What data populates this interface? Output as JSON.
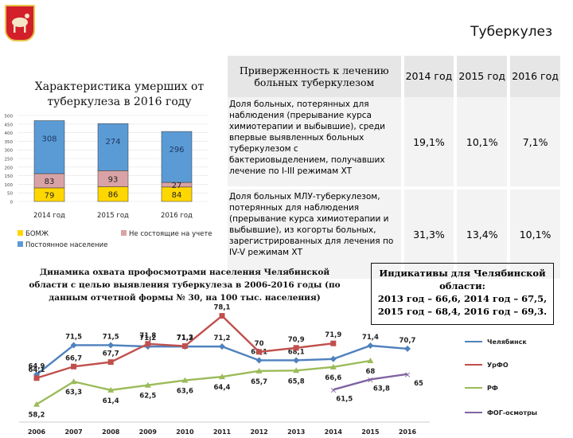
{
  "page_title": "Туберкулез",
  "colors": {
    "bomzh": "#ffd700",
    "not_registered": "#d9a3a5",
    "permanent": "#5b9bd5",
    "chelyabinsk": "#4f81bd",
    "urfo": "#c0504d",
    "rf": "#9bbb59",
    "fog": "#8064a2"
  },
  "table": {
    "header": "Приверженность к лечению больных туберкулезом",
    "years": [
      "2014 год",
      "2015 год",
      "2016 год"
    ],
    "rows": [
      {
        "text": "Доля больных, потерянных для наблюдения (прерывание курса химиотерапии и выбывшие), среди впервые выявленных больных туберкулезом с бактериовыделением, получавших лечение по I-III режимам ХТ",
        "values": [
          "19,1%",
          "10,1%",
          "7,1%"
        ]
      },
      {
        "text": "Доля больных МЛУ-туберкулезом, потерянных для наблюдения (прерывание курса химиотерапии и выбывшие), из когорты больных, зарегистрированных для лечения по IV-V режимам ХТ",
        "values": [
          "31,3%",
          "13,4%",
          "10,1%"
        ]
      }
    ]
  },
  "indicators": {
    "lines": [
      "Индикативы для Челябинской",
      "области:",
      "2013 год – 66,6, 2014 год – 67,5,",
      "2015 год – 68,4, 2016 год – 69,3."
    ]
  },
  "chart_data": [
    {
      "type": "bar",
      "stacked": true,
      "title": "Характеристика умерших от туберкулеза в 2016 году",
      "categories": [
        "2014 год",
        "2015 год",
        "2016 год"
      ],
      "ylim": [
        0,
        500
      ],
      "yticks": [
        "0",
        "50",
        "100",
        "150",
        "200",
        "250",
        "300",
        "350",
        "400",
        "450",
        "500"
      ],
      "series": [
        {
          "name": "БОМЖ",
          "values": [
            79,
            86,
            84
          ],
          "labels": [
            "79",
            "86",
            "84"
          ]
        },
        {
          "name": "Не состоящие на учете",
          "values": [
            83,
            93,
            27
          ],
          "labels": [
            "83",
            "93",
            "27"
          ]
        },
        {
          "name": "Постоянное население",
          "values": [
            308,
            274,
            296
          ],
          "labels": [
            "308",
            "274",
            "296"
          ]
        }
      ],
      "legend": "bottom"
    },
    {
      "type": "line",
      "title": "Динамика охвата профосмотрами населения Челябинской области с целью выявления туберкулеза в 2006-2016 годы (по данным отчетной формы № 30, на 100 тыс. населения)",
      "x": [
        "2006",
        "2007",
        "2008",
        "2009",
        "2010",
        "2011",
        "2012",
        "2013",
        "2014",
        "2015",
        "2016"
      ],
      "ylim": [
        56,
        80
      ],
      "series": [
        {
          "name": "Челябинск",
          "values": [
            64.9,
            71.5,
            71.5,
            71.2,
            71.2,
            71.2,
            68.1,
            68.1,
            68.4,
            71.4,
            70.7
          ],
          "labels": [
            "64,9",
            "71,5",
            "71,5",
            "71,2",
            "71,2",
            "71,2",
            "68,1",
            "68,1",
            "",
            "71,4",
            "70,7"
          ]
        },
        {
          "name": "УрФО",
          "values": [
            64.1,
            66.7,
            67.7,
            71.8,
            71.3,
            78.1,
            70.0,
            70.9,
            71.9,
            null,
            null
          ],
          "labels": [
            "64,1",
            "66,7",
            "67,7",
            "71,8",
            "71,3",
            "78,1",
            "70",
            "70,9",
            "71,9",
            "",
            ""
          ]
        },
        {
          "name": "РФ",
          "values": [
            58.2,
            63.3,
            61.4,
            62.5,
            63.6,
            64.4,
            65.7,
            65.8,
            66.6,
            68.0,
            null
          ],
          "labels": [
            "58,2",
            "63,3",
            "61,4",
            "62,5",
            "63,6",
            "64,4",
            "65,7",
            "65,8",
            "66,6",
            "68",
            ""
          ]
        },
        {
          "name": "ФОГ-осмотры",
          "values": [
            null,
            null,
            null,
            null,
            null,
            null,
            null,
            null,
            61.5,
            63.8,
            65.0
          ],
          "labels": [
            "",
            "",
            "",
            "",
            "",
            "",
            "",
            "",
            "61,5",
            "63,8",
            "65"
          ]
        }
      ],
      "legend": "right"
    }
  ]
}
